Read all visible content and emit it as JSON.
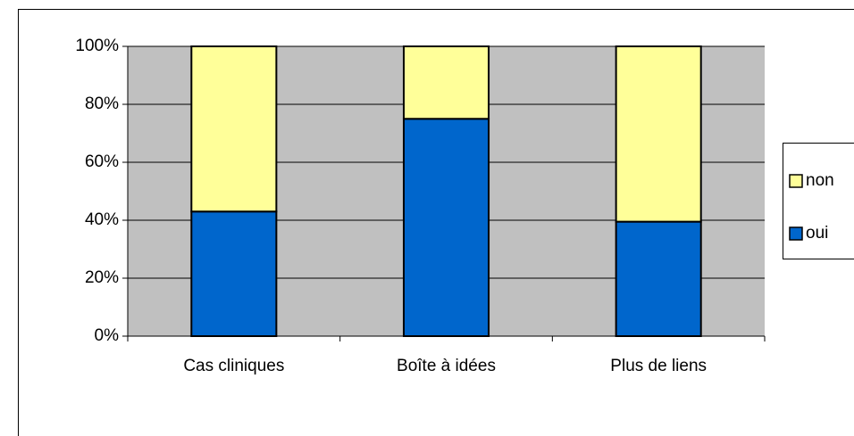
{
  "chart_data": {
    "type": "stacked-percent-bar",
    "categories": [
      "Cas cliniques",
      "Boîte à idées",
      "Plus de liens"
    ],
    "series": [
      {
        "name": "oui",
        "color": "#0066cc",
        "values": [
          43,
          75,
          39.5
        ]
      },
      {
        "name": "non",
        "color": "#ffff99",
        "values": [
          57,
          25,
          60.5
        ]
      }
    ],
    "ylim": [
      0,
      100
    ],
    "yticks": [
      {
        "value": 0,
        "label": "0%"
      },
      {
        "value": 20,
        "label": "20%"
      },
      {
        "value": 40,
        "label": "40%"
      },
      {
        "value": 60,
        "label": "60%"
      },
      {
        "value": 80,
        "label": "80%"
      },
      {
        "value": 100,
        "label": "100%"
      }
    ],
    "grid": true,
    "plot_background": "#c0c0c0",
    "legend": "right"
  }
}
